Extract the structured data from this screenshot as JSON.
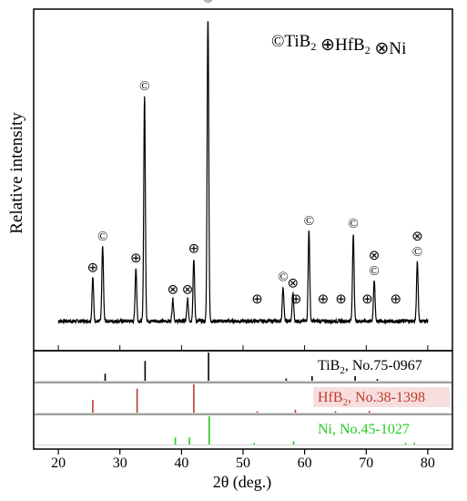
{
  "chart_data": {
    "type": "line",
    "xlabel": "2θ (deg.)",
    "ylabel": "Relative intensity",
    "xlim": [
      16,
      84
    ],
    "x_ticks": [
      20,
      30,
      40,
      50,
      60,
      70,
      80
    ],
    "legend": {
      "placement": "top-right",
      "entries": [
        {
          "symbol": "©",
          "formula": "TiB",
          "sub": "2"
        },
        {
          "symbol": "⊕",
          "formula": "HfB",
          "sub": "2"
        },
        {
          "symbol": "⊗",
          "formula": "Ni",
          "sub": ""
        }
      ]
    },
    "pattern": {
      "x_range": [
        20,
        80
      ],
      "baseline": 0.045,
      "peaks": [
        {
          "x": 25.6,
          "y": 0.14
        },
        {
          "x": 27.2,
          "y": 0.24
        },
        {
          "x": 32.6,
          "y": 0.17
        },
        {
          "x": 34.0,
          "y": 0.72
        },
        {
          "x": 38.6,
          "y": 0.07
        },
        {
          "x": 41.0,
          "y": 0.07
        },
        {
          "x": 42.0,
          "y": 0.2
        },
        {
          "x": 44.3,
          "y": 1.0
        },
        {
          "x": 56.5,
          "y": 0.11
        },
        {
          "x": 58.1,
          "y": 0.09
        },
        {
          "x": 60.7,
          "y": 0.29
        },
        {
          "x": 67.9,
          "y": 0.28
        },
        {
          "x": 71.3,
          "y": 0.13
        },
        {
          "x": 78.3,
          "y": 0.19
        }
      ]
    },
    "peak_markers": [
      {
        "x": 25.6,
        "symbols": [
          "⊕"
        ]
      },
      {
        "x": 27.2,
        "symbols": [
          "©"
        ]
      },
      {
        "x": 32.6,
        "symbols": [
          "⊕"
        ]
      },
      {
        "x": 34.0,
        "symbols": [
          "©"
        ]
      },
      {
        "x": 38.6,
        "symbols": [
          "⊗"
        ]
      },
      {
        "x": 41.0,
        "symbols": [
          "⊗"
        ]
      },
      {
        "x": 42.0,
        "symbols": [
          "⊕"
        ]
      },
      {
        "x": 44.3,
        "symbols": [
          "⊗",
          "©"
        ]
      },
      {
        "x": 52.3,
        "symbols": [
          "⊕"
        ]
      },
      {
        "x": 56.5,
        "symbols": [
          "©"
        ]
      },
      {
        "x": 58.1,
        "symbols": [
          "⊗"
        ]
      },
      {
        "x": 58.6,
        "symbols": [
          "⊕"
        ]
      },
      {
        "x": 60.7,
        "symbols": [
          "©"
        ]
      },
      {
        "x": 63.0,
        "symbols": [
          "⊕"
        ]
      },
      {
        "x": 65.9,
        "symbols": [
          "⊕"
        ]
      },
      {
        "x": 67.9,
        "symbols": [
          "©"
        ]
      },
      {
        "x": 70.2,
        "symbols": [
          "⊕"
        ]
      },
      {
        "x": 71.3,
        "symbols": [
          "⊗",
          "©"
        ]
      },
      {
        "x": 74.8,
        "symbols": [
          "⊕"
        ]
      },
      {
        "x": 78.3,
        "symbols": [
          "⊗",
          "©"
        ]
      }
    ],
    "references": [
      {
        "formula": "TiB",
        "sub": "2",
        "card": ", No.75-0967",
        "color": "#000000",
        "label_bg": "#ffffff",
        "lines": [
          {
            "x": 27.6,
            "h": 0.25
          },
          {
            "x": 34.1,
            "h": 0.7
          },
          {
            "x": 44.4,
            "h": 1.0
          },
          {
            "x": 57.0,
            "h": 0.08
          },
          {
            "x": 61.2,
            "h": 0.16
          },
          {
            "x": 68.2,
            "h": 0.16
          },
          {
            "x": 71.8,
            "h": 0.06
          }
        ]
      },
      {
        "formula": "HfB",
        "sub": "2",
        "card": ", No.38-1398",
        "color": "#c0392b",
        "label_bg": "#f6dede",
        "lines": [
          {
            "x": 25.6,
            "h": 0.45
          },
          {
            "x": 32.8,
            "h": 0.85
          },
          {
            "x": 42.0,
            "h": 1.0
          },
          {
            "x": 52.3,
            "h": 0.05
          },
          {
            "x": 58.5,
            "h": 0.1
          },
          {
            "x": 65.0,
            "h": 0.05
          },
          {
            "x": 70.5,
            "h": 0.06
          }
        ]
      },
      {
        "formula": "Ni",
        "sub": "",
        "card": ", No.45-1027",
        "color": "#22cc22",
        "label_bg": "#ffffff",
        "lines": [
          {
            "x": 39.0,
            "h": 0.25
          },
          {
            "x": 41.3,
            "h": 0.25
          },
          {
            "x": 44.5,
            "h": 1.0
          },
          {
            "x": 51.8,
            "h": 0.06
          },
          {
            "x": 58.2,
            "h": 0.12
          },
          {
            "x": 76.4,
            "h": 0.06
          },
          {
            "x": 77.8,
            "h": 0.07
          }
        ]
      }
    ]
  }
}
